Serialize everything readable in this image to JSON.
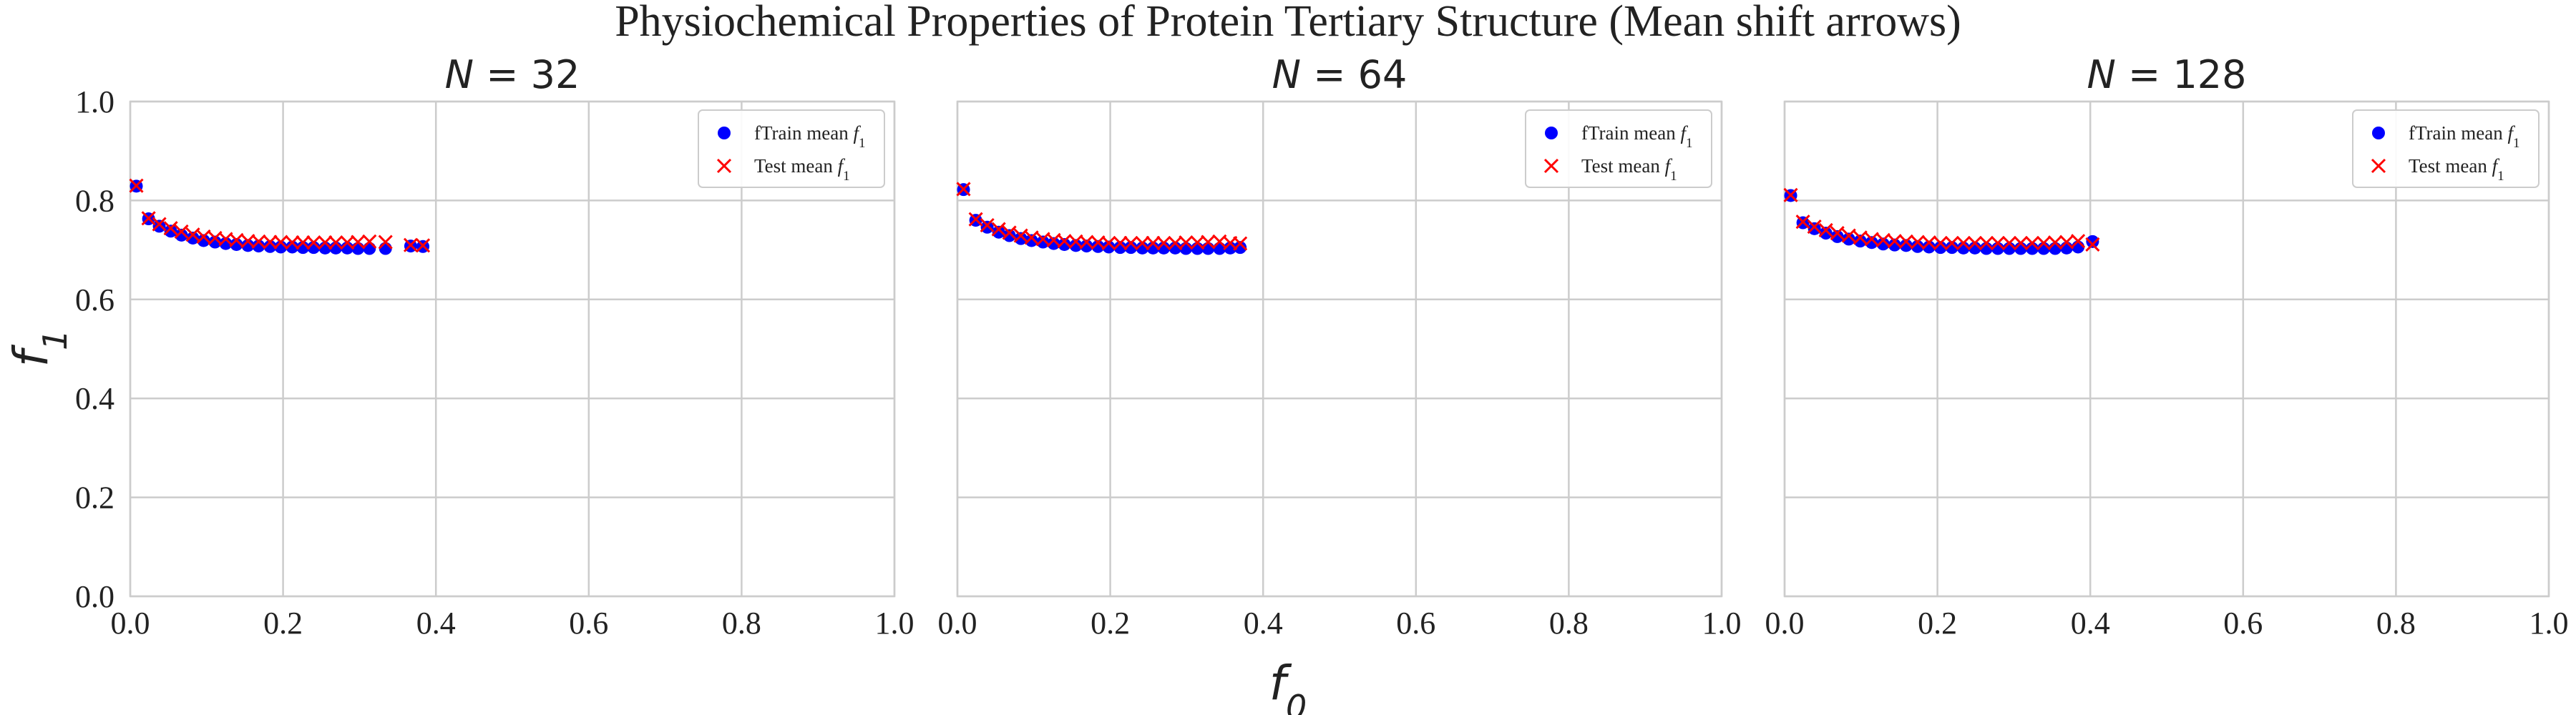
{
  "chart_data": {
    "title": "Physiochemical Properties of Protein Tertiary Structure (Mean shift arrows)",
    "type": "scatter",
    "xlabel": "f_0",
    "ylabel": "f_1",
    "xlim": [
      0.0,
      1.0
    ],
    "ylim": [
      0.0,
      1.0
    ],
    "xticks": [
      "0.0",
      "0.2",
      "0.4",
      "0.6",
      "0.8",
      "1.0"
    ],
    "yticks": [
      "0.0",
      "0.2",
      "0.4",
      "0.6",
      "0.8",
      "1.0"
    ],
    "grid": true,
    "legend_position": "top-right",
    "colors": {
      "train": "#0000ff",
      "test": "#ff0000"
    },
    "panels": [
      {
        "title": "N = 32",
        "series": [
          {
            "name": "fTrain mean f_1",
            "marker": "circle",
            "x": [
              0.008,
              0.024,
              0.038,
              0.053,
              0.067,
              0.082,
              0.096,
              0.111,
              0.125,
              0.139,
              0.154,
              0.168,
              0.183,
              0.197,
              0.212,
              0.226,
              0.24,
              0.255,
              0.269,
              0.284,
              0.298,
              0.313,
              0.334,
              0.367,
              0.383
            ],
            "y": [
              0.829,
              0.763,
              0.748,
              0.738,
              0.73,
              0.724,
              0.719,
              0.716,
              0.713,
              0.711,
              0.709,
              0.708,
              0.707,
              0.706,
              0.706,
              0.705,
              0.705,
              0.704,
              0.704,
              0.704,
              0.703,
              0.703,
              0.703,
              0.708,
              0.707
            ]
          },
          {
            "name": "Test mean f_1",
            "marker": "x",
            "x": [
              0.008,
              0.024,
              0.038,
              0.053,
              0.067,
              0.082,
              0.096,
              0.111,
              0.125,
              0.139,
              0.154,
              0.168,
              0.183,
              0.197,
              0.212,
              0.226,
              0.24,
              0.255,
              0.269,
              0.284,
              0.298,
              0.313,
              0.334,
              0.367,
              0.383
            ],
            "y": [
              0.83,
              0.764,
              0.752,
              0.744,
              0.737,
              0.731,
              0.727,
              0.724,
              0.722,
              0.72,
              0.718,
              0.717,
              0.716,
              0.716,
              0.715,
              0.715,
              0.715,
              0.715,
              0.715,
              0.715,
              0.716,
              0.717,
              0.716,
              0.71,
              0.709
            ]
          }
        ]
      },
      {
        "title": "N = 64",
        "series": [
          {
            "name": "fTrain mean f_1",
            "marker": "circle",
            "x": [
              0.008,
              0.024,
              0.039,
              0.054,
              0.068,
              0.083,
              0.097,
              0.112,
              0.126,
              0.14,
              0.155,
              0.169,
              0.184,
              0.198,
              0.213,
              0.227,
              0.242,
              0.256,
              0.27,
              0.285,
              0.299,
              0.314,
              0.328,
              0.343,
              0.357,
              0.37
            ],
            "y": [
              0.822,
              0.76,
              0.746,
              0.736,
              0.729,
              0.723,
              0.719,
              0.716,
              0.713,
              0.711,
              0.709,
              0.708,
              0.707,
              0.706,
              0.705,
              0.705,
              0.704,
              0.704,
              0.704,
              0.704,
              0.703,
              0.703,
              0.703,
              0.703,
              0.704,
              0.705
            ]
          },
          {
            "name": "Test mean f_1",
            "marker": "x",
            "x": [
              0.008,
              0.024,
              0.039,
              0.054,
              0.068,
              0.083,
              0.097,
              0.112,
              0.126,
              0.14,
              0.155,
              0.169,
              0.184,
              0.198,
              0.213,
              0.227,
              0.242,
              0.256,
              0.27,
              0.285,
              0.299,
              0.314,
              0.328,
              0.343,
              0.357,
              0.37
            ],
            "y": [
              0.823,
              0.762,
              0.75,
              0.742,
              0.735,
              0.729,
              0.725,
              0.722,
              0.72,
              0.718,
              0.717,
              0.716,
              0.715,
              0.714,
              0.714,
              0.714,
              0.714,
              0.714,
              0.714,
              0.714,
              0.715,
              0.715,
              0.716,
              0.717,
              0.714,
              0.713
            ]
          }
        ]
      },
      {
        "title": "N = 128",
        "series": [
          {
            "name": "fTrain mean f_1",
            "marker": "circle",
            "x": [
              0.008,
              0.024,
              0.039,
              0.054,
              0.069,
              0.084,
              0.099,
              0.114,
              0.129,
              0.144,
              0.159,
              0.174,
              0.189,
              0.204,
              0.219,
              0.234,
              0.249,
              0.264,
              0.279,
              0.294,
              0.309,
              0.324,
              0.339,
              0.354,
              0.369,
              0.384,
              0.403
            ],
            "y": [
              0.81,
              0.755,
              0.743,
              0.734,
              0.727,
              0.722,
              0.718,
              0.715,
              0.712,
              0.71,
              0.709,
              0.707,
              0.706,
              0.705,
              0.705,
              0.704,
              0.704,
              0.703,
              0.703,
              0.703,
              0.703,
              0.703,
              0.703,
              0.703,
              0.704,
              0.706,
              0.717
            ]
          },
          {
            "name": "Test mean f_1",
            "marker": "x",
            "x": [
              0.008,
              0.024,
              0.039,
              0.054,
              0.069,
              0.084,
              0.099,
              0.114,
              0.129,
              0.144,
              0.159,
              0.174,
              0.189,
              0.204,
              0.219,
              0.234,
              0.249,
              0.264,
              0.279,
              0.294,
              0.309,
              0.324,
              0.339,
              0.354,
              0.369,
              0.384,
              0.403
            ],
            "y": [
              0.811,
              0.757,
              0.747,
              0.74,
              0.734,
              0.729,
              0.725,
              0.722,
              0.72,
              0.718,
              0.717,
              0.716,
              0.715,
              0.714,
              0.714,
              0.714,
              0.714,
              0.714,
              0.714,
              0.714,
              0.714,
              0.714,
              0.714,
              0.715,
              0.716,
              0.718,
              0.711
            ]
          }
        ]
      }
    ]
  }
}
